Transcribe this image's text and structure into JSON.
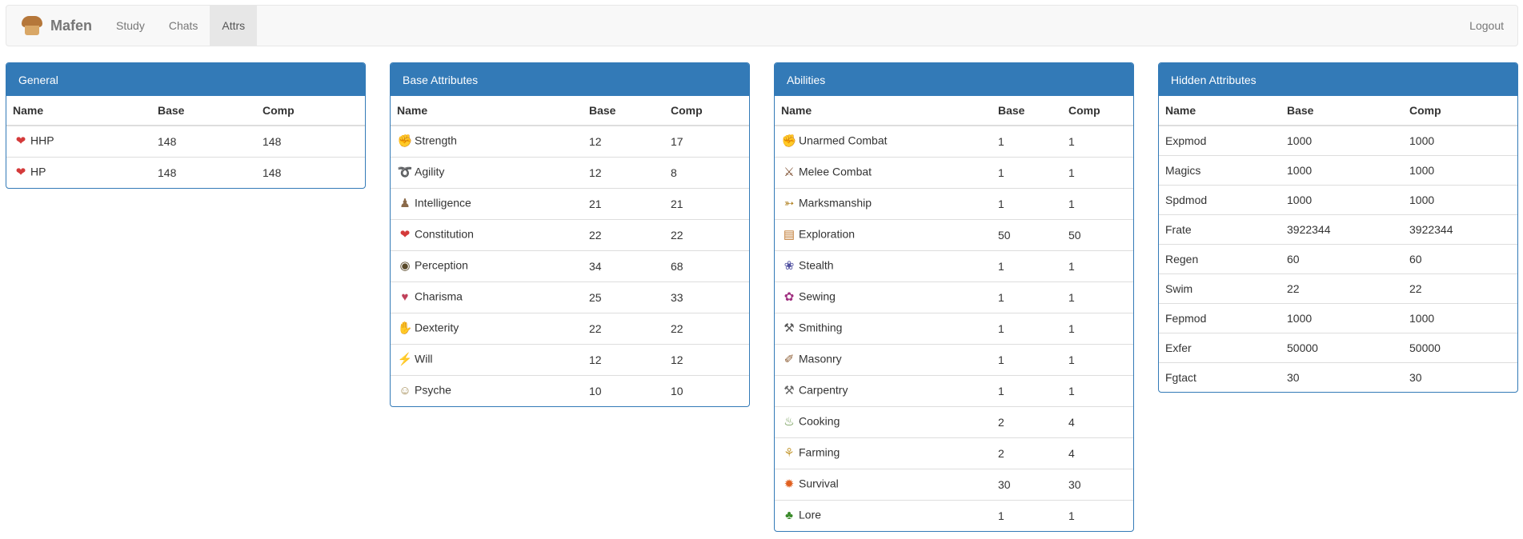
{
  "navbar": {
    "brand": "Mafen",
    "items": [
      {
        "label": "Study"
      },
      {
        "label": "Chats"
      },
      {
        "label": "Attrs",
        "active": true
      }
    ],
    "logout": "Logout"
  },
  "columns": {
    "name": "Name",
    "base": "Base",
    "comp": "Comp"
  },
  "general": {
    "title": "General",
    "rows": [
      {
        "icon": "heart-icon",
        "name": "HHP",
        "base": "148",
        "comp": "148"
      },
      {
        "icon": "heart-icon",
        "name": "HP",
        "base": "148",
        "comp": "148"
      }
    ]
  },
  "base_attributes": {
    "title": "Base Attributes",
    "rows": [
      {
        "icon": "strength-icon",
        "name": "Strength",
        "base": "12",
        "comp": "17"
      },
      {
        "icon": "agility-icon",
        "name": "Agility",
        "base": "12",
        "comp": "8"
      },
      {
        "icon": "intelligence-icon",
        "name": "Intelligence",
        "base": "21",
        "comp": "21"
      },
      {
        "icon": "heart-icon",
        "name": "Constitution",
        "base": "22",
        "comp": "22"
      },
      {
        "icon": "eye-icon",
        "name": "Perception",
        "base": "34",
        "comp": "68"
      },
      {
        "icon": "lips-icon",
        "name": "Charisma",
        "base": "25",
        "comp": "33"
      },
      {
        "icon": "hand-icon",
        "name": "Dexterity",
        "base": "22",
        "comp": "22"
      },
      {
        "icon": "lightning-icon",
        "name": "Will",
        "base": "12",
        "comp": "12"
      },
      {
        "icon": "psyche-icon",
        "name": "Psyche",
        "base": "10",
        "comp": "10"
      }
    ]
  },
  "abilities": {
    "title": "Abilities",
    "rows": [
      {
        "icon": "fist-icon",
        "name": "Unarmed Combat",
        "base": "1",
        "comp": "1"
      },
      {
        "icon": "sword-icon",
        "name": "Melee Combat",
        "base": "1",
        "comp": "1"
      },
      {
        "icon": "bow-icon",
        "name": "Marksmanship",
        "base": "1",
        "comp": "1"
      },
      {
        "icon": "map-icon",
        "name": "Exploration",
        "base": "50",
        "comp": "50"
      },
      {
        "icon": "stealth-icon",
        "name": "Stealth",
        "base": "1",
        "comp": "1"
      },
      {
        "icon": "yarn-icon",
        "name": "Sewing",
        "base": "1",
        "comp": "1"
      },
      {
        "icon": "anvil-icon",
        "name": "Smithing",
        "base": "1",
        "comp": "1"
      },
      {
        "icon": "trowel-icon",
        "name": "Masonry",
        "base": "1",
        "comp": "1"
      },
      {
        "icon": "tools-icon",
        "name": "Carpentry",
        "base": "1",
        "comp": "1"
      },
      {
        "icon": "pot-icon",
        "name": "Cooking",
        "base": "2",
        "comp": "4"
      },
      {
        "icon": "wheat-icon",
        "name": "Farming",
        "base": "2",
        "comp": "4"
      },
      {
        "icon": "fire-icon",
        "name": "Survival",
        "base": "30",
        "comp": "30"
      },
      {
        "icon": "tree-icon",
        "name": "Lore",
        "base": "1",
        "comp": "1"
      }
    ]
  },
  "hidden_attributes": {
    "title": "Hidden Attributes",
    "rows": [
      {
        "name": "Expmod",
        "base": "1000",
        "comp": "1000"
      },
      {
        "name": "Magics",
        "base": "1000",
        "comp": "1000"
      },
      {
        "name": "Spdmod",
        "base": "1000",
        "comp": "1000"
      },
      {
        "name": "Frate",
        "base": "3922344",
        "comp": "3922344"
      },
      {
        "name": "Regen",
        "base": "60",
        "comp": "60"
      },
      {
        "name": "Swim",
        "base": "22",
        "comp": "22"
      },
      {
        "name": "Fepmod",
        "base": "1000",
        "comp": "1000"
      },
      {
        "name": "Exfer",
        "base": "50000",
        "comp": "50000"
      },
      {
        "name": "Fgtact",
        "base": "30",
        "comp": "30"
      }
    ]
  },
  "colors": {
    "panel": "#337ab7",
    "navbar": "#f8f8f8",
    "active_nav": "#e7e7e7"
  }
}
